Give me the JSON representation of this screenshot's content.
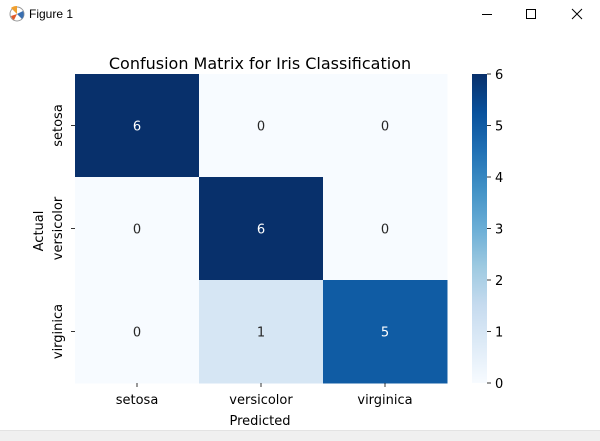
{
  "window": {
    "title": "Figure 1"
  },
  "chart_data": {
    "type": "heatmap",
    "title": "Confusion Matrix for Iris Classification",
    "xlabel": "Predicted",
    "ylabel": "Actual",
    "x_categories": [
      "setosa",
      "versicolor",
      "virginica"
    ],
    "y_categories": [
      "setosa",
      "versicolor",
      "virginica"
    ],
    "matrix": [
      [
        6,
        0,
        0
      ],
      [
        0,
        6,
        0
      ],
      [
        0,
        1,
        5
      ]
    ],
    "colorbar": {
      "min": 0,
      "max": 6,
      "ticks": [
        "0",
        "1",
        "2",
        "3",
        "4",
        "5",
        "6"
      ],
      "colormap": "Blues"
    },
    "annotations": true
  }
}
